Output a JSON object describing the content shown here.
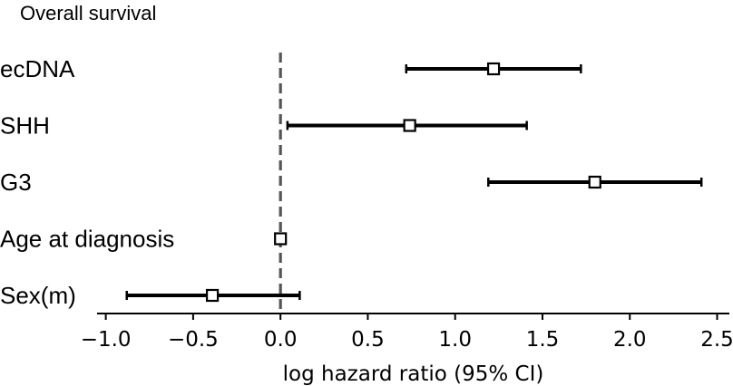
{
  "chart_data": {
    "type": "forest",
    "title": "Overall survival",
    "xlabel": "log hazard ratio (95% CI)",
    "xlim": [
      -1.05,
      2.57
    ],
    "xticks": [
      -1.0,
      -0.5,
      0.0,
      0.5,
      1.0,
      1.5,
      2.0,
      2.5
    ],
    "xtick_labels": [
      "−1.0",
      "−0.5",
      "0.0",
      "0.5",
      "1.0",
      "1.5",
      "2.0",
      "2.5"
    ],
    "reference_line": 0.0,
    "rows": [
      {
        "label": "ecDNA",
        "estimate": 1.22,
        "lower": 0.72,
        "upper": 1.72
      },
      {
        "label": "SHH",
        "estimate": 0.74,
        "lower": 0.04,
        "upper": 1.41
      },
      {
        "label": "G3",
        "estimate": 1.8,
        "lower": 1.19,
        "upper": 2.41
      },
      {
        "label": "Age at diagnosis",
        "estimate": 0.0,
        "lower": 0.0,
        "upper": 0.0
      },
      {
        "label": "Sex(m)",
        "estimate": -0.39,
        "lower": -0.88,
        "upper": 0.11
      }
    ],
    "colors": {
      "marks": "#000000",
      "reference_line": "#555555",
      "marker_fill": "#ffffff"
    }
  }
}
